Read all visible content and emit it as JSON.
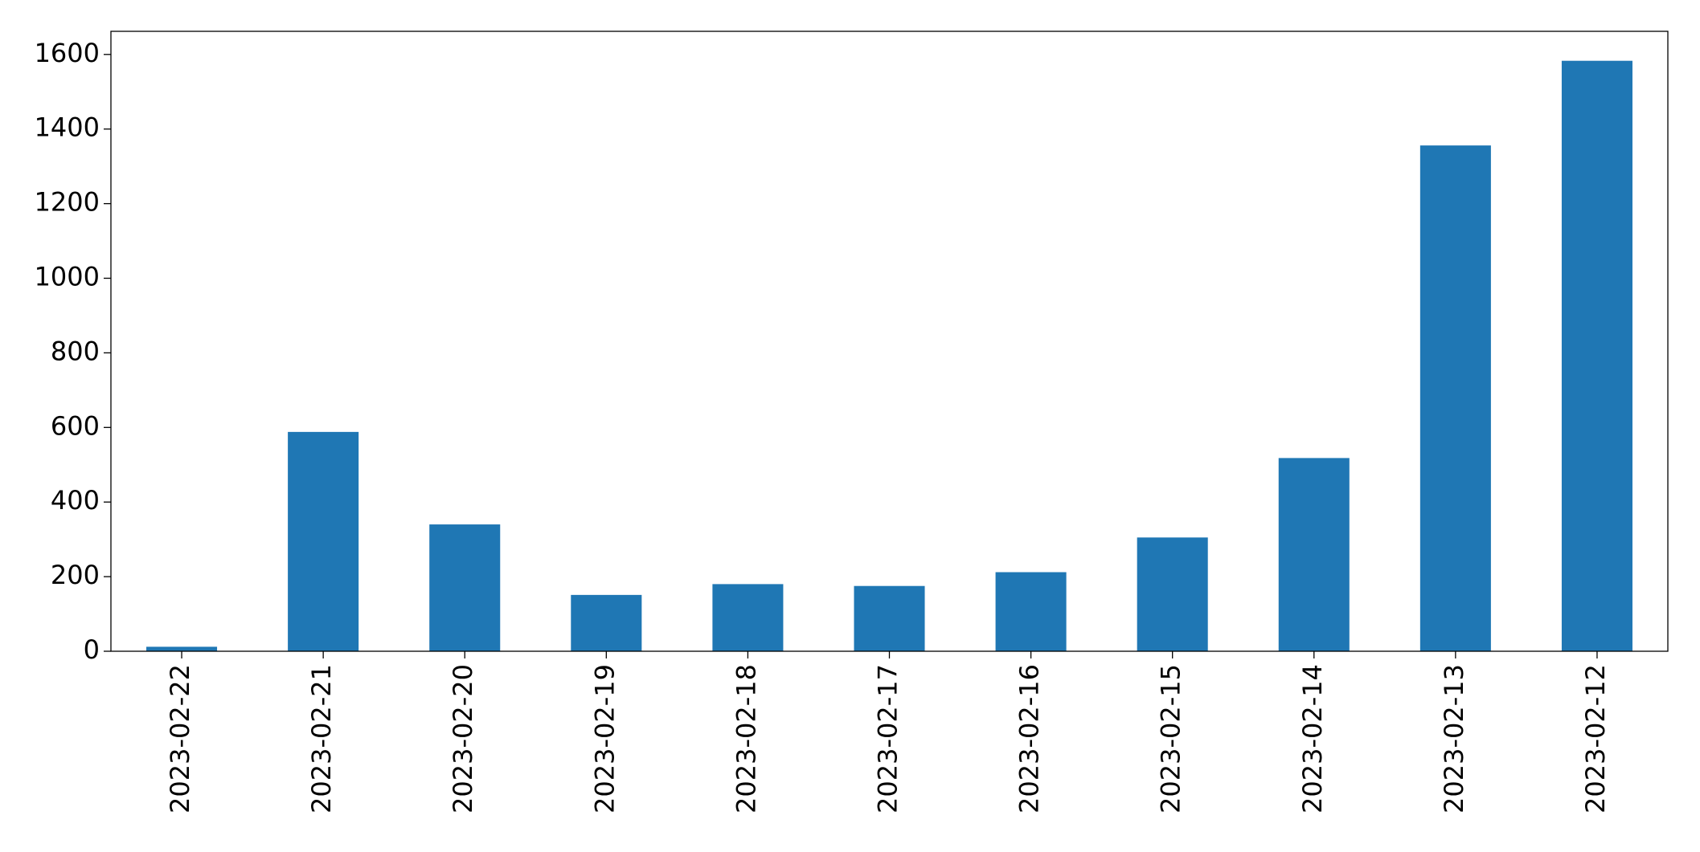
{
  "chart_data": {
    "type": "bar",
    "categories": [
      "2023-02-22",
      "2023-02-21",
      "2023-02-20",
      "2023-02-19",
      "2023-02-18",
      "2023-02-17",
      "2023-02-16",
      "2023-02-15",
      "2023-02-14",
      "2023-02-13",
      "2023-02-12"
    ],
    "values": [
      12,
      588,
      340,
      151,
      180,
      175,
      212,
      305,
      518,
      1356,
      1583
    ],
    "color": "#1f77b4",
    "ylim": [
      0,
      1662
    ],
    "yticks": [
      0,
      200,
      400,
      600,
      800,
      1000,
      1200,
      1400,
      1600
    ],
    "grid": false
  }
}
